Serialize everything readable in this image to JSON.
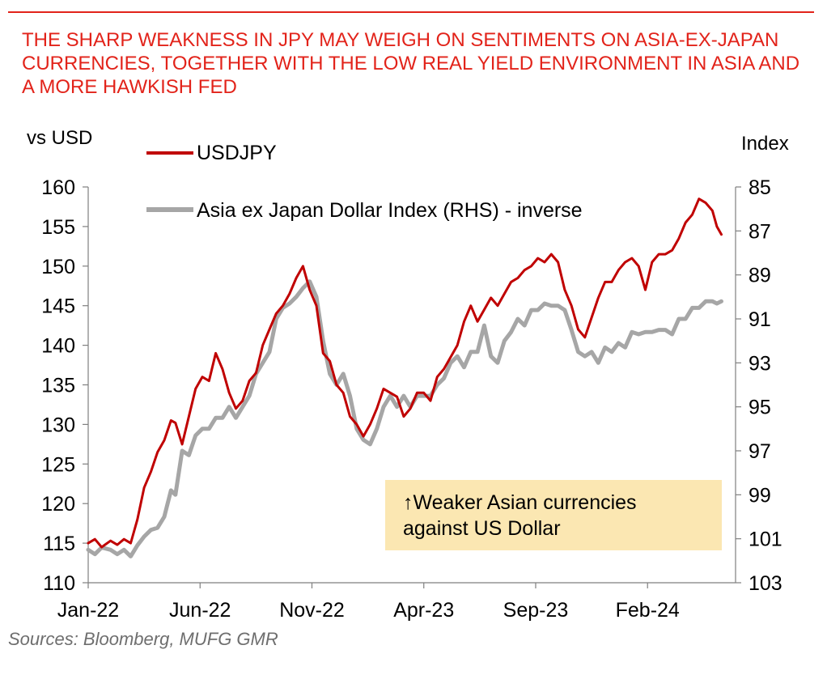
{
  "title": "THE SHARP WEAKNESS IN JPY MAY WEIGH ON SENTIMENTS ON ASIA-EX-JAPAN CURRENCIES, TOGETHER WITH THE LOW REAL YIELD ENVIRONMENT IN ASIA AND A MORE HAWKISH FED",
  "sources": "Sources:  Bloomberg, MUFG GMR",
  "annotation": {
    "line1": "↑Weaker Asian currencies",
    "line2": "against US Dollar"
  },
  "colors": {
    "title": "#e2231a",
    "usdjpy": "#c00000",
    "asia": "#a6a6a6",
    "annotation_bg": "#fbe7b2"
  },
  "chart_data": {
    "type": "line",
    "title": "",
    "ylabel_left": "vs USD",
    "ylabel_right": "Index",
    "ylim_left": [
      110,
      160
    ],
    "ylim_right": [
      103,
      85
    ],
    "yticks_left": [
      110,
      115,
      120,
      125,
      130,
      135,
      140,
      145,
      150,
      155,
      160
    ],
    "yticks_right": [
      103,
      101,
      99,
      97,
      95,
      93,
      91,
      89,
      87,
      85
    ],
    "x_domain": [
      0,
      28.5
    ],
    "x_ticks": [
      {
        "label": "Jan-22",
        "x": 0
      },
      {
        "label": "Jun-22",
        "x": 5
      },
      {
        "label": "Nov-22",
        "x": 10
      },
      {
        "label": "Apr-23",
        "x": 15
      },
      {
        "label": "Sep-23",
        "x": 20
      },
      {
        "label": "Feb-24",
        "x": 25
      }
    ],
    "x_unit": "months since Jan-22",
    "series": [
      {
        "name": "USDJPY",
        "axis": "left",
        "x": [
          0,
          0.3,
          0.6,
          1,
          1.3,
          1.6,
          1.9,
          2.2,
          2.5,
          2.8,
          3.1,
          3.4,
          3.7,
          3.9,
          4.2,
          4.5,
          4.8,
          5.1,
          5.4,
          5.7,
          6,
          6.3,
          6.6,
          6.9,
          7.2,
          7.5,
          7.8,
          8.1,
          8.4,
          8.7,
          9,
          9.3,
          9.6,
          9.9,
          10.2,
          10.5,
          10.8,
          11.1,
          11.4,
          11.7,
          12,
          12.3,
          12.6,
          12.9,
          13.2,
          13.5,
          13.8,
          14.1,
          14.4,
          14.7,
          15,
          15.3,
          15.6,
          15.9,
          16.2,
          16.5,
          16.8,
          17.1,
          17.4,
          17.7,
          18,
          18.3,
          18.6,
          18.9,
          19.2,
          19.5,
          19.8,
          20.1,
          20.4,
          20.7,
          21,
          21.3,
          21.6,
          21.9,
          22.2,
          22.5,
          22.8,
          23.1,
          23.4,
          23.7,
          24,
          24.3,
          24.6,
          24.9,
          25.2,
          25.5,
          25.8,
          26.1,
          26.4,
          26.7,
          27,
          27.3,
          27.6,
          27.9,
          28.1,
          28.3
        ],
        "values": [
          115,
          115.5,
          114.5,
          115.3,
          114.8,
          115.5,
          115,
          118,
          122,
          124,
          126.5,
          128,
          130.5,
          130.2,
          127.5,
          131,
          134.5,
          136,
          135.5,
          139,
          137,
          134,
          132,
          133,
          135.5,
          136.5,
          140,
          142,
          144,
          145,
          146.5,
          148.5,
          150,
          147,
          145,
          139,
          138,
          135,
          134,
          131,
          130,
          128.5,
          130,
          132,
          134.5,
          134,
          133.5,
          131,
          132,
          134,
          134,
          133,
          136,
          137,
          138.5,
          140,
          143,
          145,
          143,
          144.5,
          146,
          145,
          146.5,
          148,
          148.5,
          149.5,
          150,
          151,
          150.5,
          151.5,
          150.5,
          147,
          145,
          142,
          141,
          143.5,
          146,
          148,
          148,
          149.5,
          150.5,
          151,
          150,
          147,
          150.5,
          151.5,
          151.5,
          152,
          153.5,
          155.5,
          156.5,
          158.5,
          158,
          157,
          155,
          154
        ]
      },
      {
        "name": "Asia ex Japan Dollar Index (RHS) - inverse",
        "axis": "right",
        "x": [
          0,
          0.3,
          0.6,
          1,
          1.3,
          1.6,
          1.9,
          2.2,
          2.5,
          2.8,
          3.1,
          3.4,
          3.7,
          3.9,
          4.2,
          4.5,
          4.8,
          5.1,
          5.4,
          5.7,
          6,
          6.3,
          6.6,
          6.9,
          7.2,
          7.5,
          7.8,
          8.1,
          8.4,
          8.7,
          9,
          9.3,
          9.6,
          9.9,
          10.2,
          10.5,
          10.8,
          11.1,
          11.4,
          11.7,
          12,
          12.3,
          12.6,
          12.9,
          13.2,
          13.5,
          13.8,
          14.1,
          14.4,
          14.7,
          15,
          15.3,
          15.6,
          15.9,
          16.2,
          16.5,
          16.8,
          17.1,
          17.4,
          17.7,
          18,
          18.3,
          18.6,
          18.9,
          19.2,
          19.5,
          19.8,
          20.1,
          20.4,
          20.7,
          21,
          21.3,
          21.6,
          21.9,
          22.2,
          22.5,
          22.8,
          23.1,
          23.4,
          23.7,
          24,
          24.3,
          24.6,
          24.9,
          25.2,
          25.5,
          25.8,
          26.1,
          26.4,
          26.7,
          27,
          27.3,
          27.6,
          27.9,
          28.1,
          28.3
        ],
        "values": [
          101.5,
          101.7,
          101.4,
          101.5,
          101.7,
          101.5,
          101.8,
          101.3,
          100.9,
          100.6,
          100.5,
          100.0,
          98.8,
          99.0,
          97.0,
          97.2,
          96.3,
          96.0,
          96.0,
          95.5,
          95.5,
          95.0,
          95.5,
          95.0,
          94.5,
          93.5,
          93.0,
          92.5,
          91.0,
          90.5,
          90.3,
          90.0,
          89.6,
          89.3,
          90.0,
          92.0,
          93.5,
          94.0,
          93.5,
          94.5,
          96.0,
          96.5,
          96.7,
          96.0,
          95.0,
          94.5,
          95.0,
          94.5,
          95.0,
          94.5,
          94.5,
          94.5,
          94.0,
          93.7,
          93.0,
          92.7,
          93.2,
          92.5,
          92.5,
          91.3,
          92.7,
          93.0,
          92.0,
          91.6,
          91.0,
          91.3,
          90.6,
          90.6,
          90.3,
          90.4,
          90.4,
          90.6,
          91.5,
          92.5,
          92.7,
          92.5,
          93.0,
          92.3,
          92.5,
          92.1,
          92.3,
          91.6,
          91.7,
          91.6,
          91.6,
          91.5,
          91.5,
          91.7,
          91.0,
          91.0,
          90.5,
          90.5,
          90.2,
          90.2,
          90.3,
          90.2
        ]
      }
    ],
    "legend": [
      "USDJPY",
      "Asia ex Japan Dollar Index (RHS) - inverse"
    ],
    "legend_position": "top-left",
    "grid": false
  }
}
